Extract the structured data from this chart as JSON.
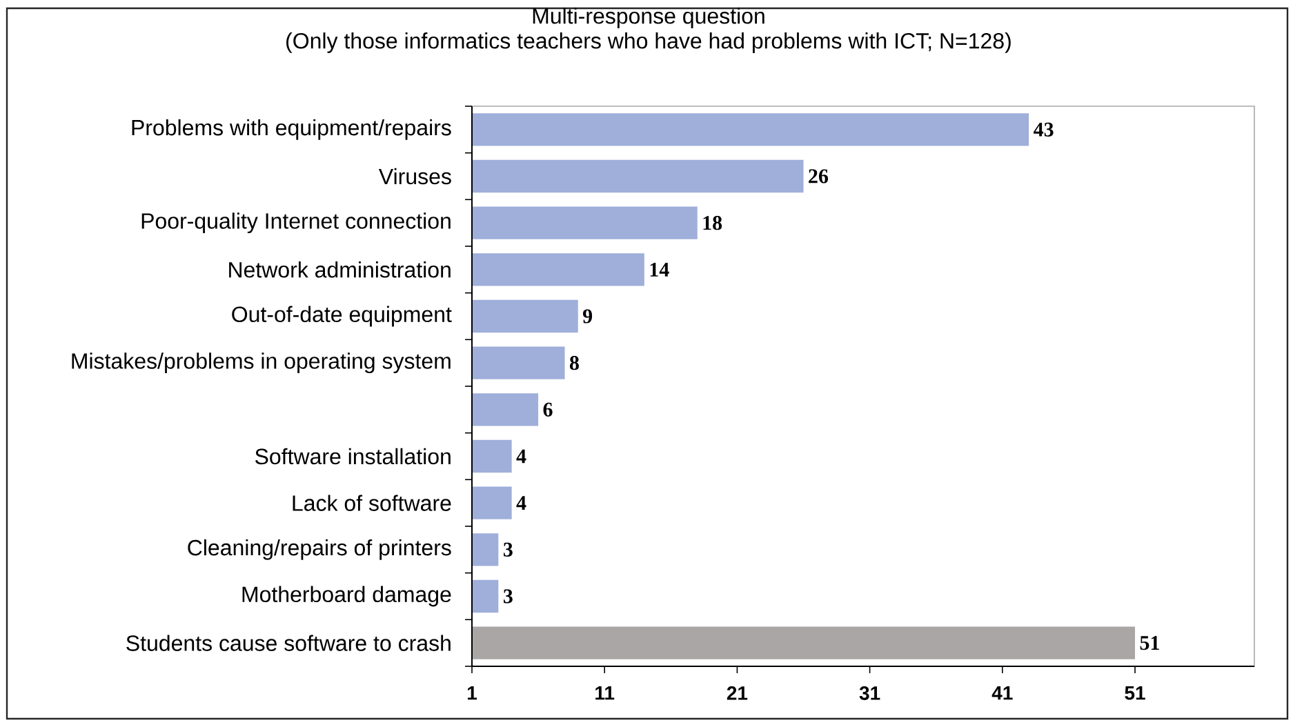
{
  "chart_data": {
    "type": "bar",
    "orientation": "horizontal",
    "title": "Multi-response question",
    "subtitle": "(Only those informatics teachers who have had problems with ICT; N=128)",
    "categories": [
      "Problems with equipment/repairs",
      "Viruses",
      "Poor-quality Internet connection",
      "Network administration",
      "Out-of-date equipment",
      "Mistakes/problems in operating system",
      null,
      "Software installation",
      "Lack of software",
      "Cleaning/repairs of printers",
      "Motherboard damage",
      "Students cause software to crash"
    ],
    "values": [
      43,
      26,
      18,
      14,
      9,
      8,
      6,
      4,
      4,
      3,
      3,
      51
    ],
    "colors": [
      "#9fafda",
      "#9fafda",
      "#9fafda",
      "#9fafda",
      "#9fafda",
      "#9fafda",
      "#9fafda",
      "#9fafda",
      "#9fafda",
      "#9fafda",
      "#9fafda",
      "#aaa6a6"
    ],
    "xlim": [
      1,
      60
    ],
    "xticks": [
      1,
      11,
      21,
      31,
      41,
      51
    ],
    "data_labels": true
  }
}
